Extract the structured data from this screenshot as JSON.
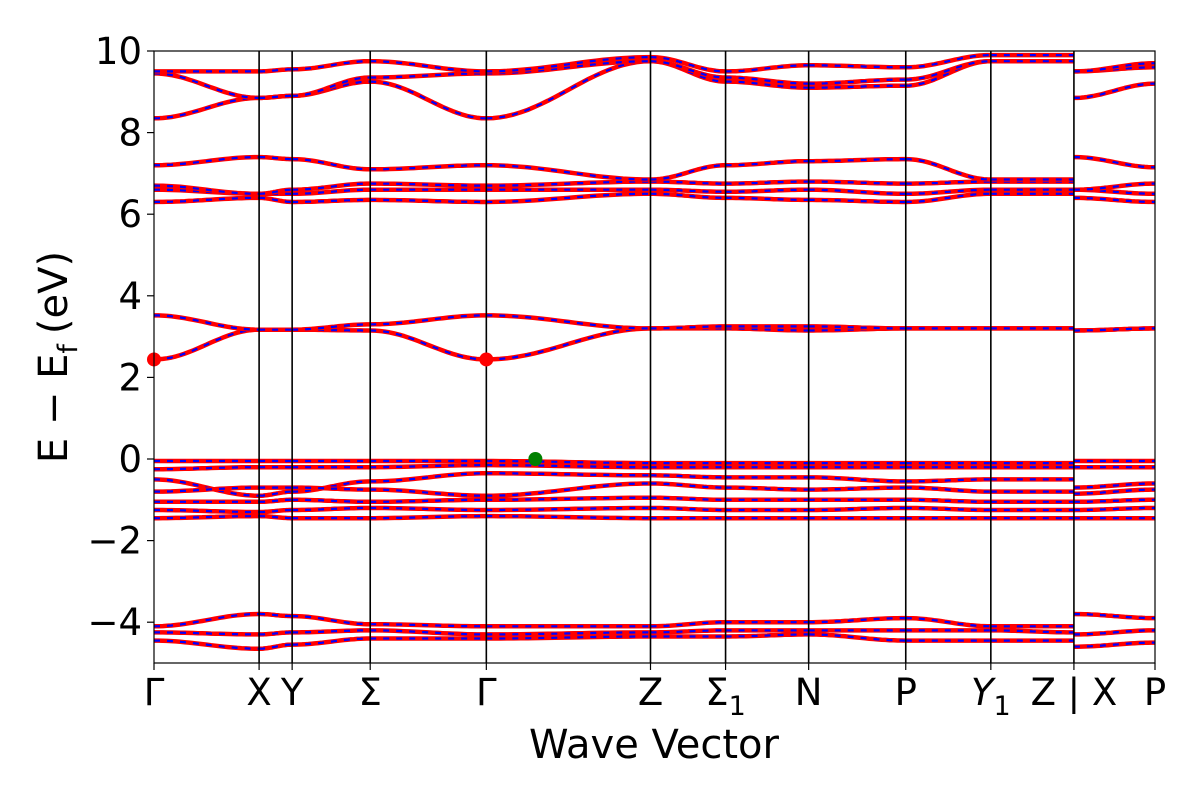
{
  "chart_data": {
    "type": "line",
    "title": "",
    "xlabel": "Wave Vector",
    "ylabel": "E − E_f (eV)",
    "ylabel_parts": {
      "main": "E − E",
      "sub": "f",
      "unit": "(eV)"
    },
    "ylim": [
      -5,
      10
    ],
    "yticks": [
      -4,
      -2,
      0,
      2,
      4,
      6,
      8,
      10
    ],
    "ytick_labels": [
      "−4",
      "−2",
      "0",
      "2",
      "4",
      "6",
      "8",
      "10"
    ],
    "xlim": [
      0,
      1
    ],
    "kpoints": [
      {
        "x": 0.0,
        "label": "Γ"
      },
      {
        "x": 0.105,
        "label": "X"
      },
      {
        "x": 0.138,
        "label": "Y"
      },
      {
        "x": 0.216,
        "label": "Σ"
      },
      {
        "x": 0.332,
        "label": "Γ"
      },
      {
        "x": 0.496,
        "label": "Z"
      },
      {
        "x": 0.571,
        "label": "Σ",
        "sub": "1"
      },
      {
        "x": 0.654,
        "label": "N"
      },
      {
        "x": 0.751,
        "label": "P"
      },
      {
        "x": 0.836,
        "label": "Y",
        "sub": "1",
        "italic": true
      },
      {
        "x": 0.919,
        "label": "Z | X"
      },
      {
        "x": 1.0,
        "label": "P"
      }
    ],
    "line_colors": {
      "band_up": "#ff0000",
      "band_down": "#0000ff"
    },
    "markers": [
      {
        "name": "CBM",
        "x": 0.0,
        "y": 2.44,
        "color": "#ff0000"
      },
      {
        "name": "CBM",
        "x": 0.332,
        "y": 2.44,
        "color": "#ff0000"
      },
      {
        "name": "VBM",
        "x": 0.381,
        "y": 0.0,
        "color": "#008000"
      }
    ],
    "bands": [
      {
        "name": "valence-lower-1",
        "x": [
          0,
          0.105,
          0.138,
          0.216,
          0.332,
          0.496,
          0.571,
          0.654,
          0.751,
          0.836,
          0.919,
          0.919,
          1.0
        ],
        "y": [
          -4.1,
          -3.8,
          -3.85,
          -4.05,
          -4.1,
          -4.1,
          -4.0,
          -4.0,
          -3.9,
          -4.1,
          -4.1,
          -3.8,
          -3.9
        ]
      },
      {
        "name": "valence-lower-2",
        "x": [
          0,
          0.105,
          0.138,
          0.216,
          0.332,
          0.496,
          0.571,
          0.654,
          0.751,
          0.836,
          0.919,
          0.919,
          1.0
        ],
        "y": [
          -4.25,
          -4.3,
          -4.25,
          -4.2,
          -4.3,
          -4.25,
          -4.2,
          -4.2,
          -4.2,
          -4.2,
          -4.25,
          -4.3,
          -4.2
        ]
      },
      {
        "name": "valence-lower-3",
        "x": [
          0,
          0.105,
          0.138,
          0.216,
          0.332,
          0.496,
          0.571,
          0.654,
          0.751,
          0.836,
          0.919,
          0.919,
          1.0
        ],
        "y": [
          -4.45,
          -4.65,
          -4.55,
          -4.4,
          -4.4,
          -4.35,
          -4.35,
          -4.3,
          -4.45,
          -4.45,
          -4.45,
          -4.6,
          -4.5
        ]
      },
      {
        "name": "valence-upper-1",
        "x": [
          0,
          0.105,
          0.138,
          0.216,
          0.332,
          0.496,
          0.571,
          0.654,
          0.751,
          0.836,
          0.919,
          0.919,
          1.0
        ],
        "y": [
          -0.05,
          -0.05,
          -0.05,
          -0.05,
          -0.05,
          -0.1,
          -0.1,
          -0.1,
          -0.1,
          -0.1,
          -0.1,
          -0.05,
          -0.05
        ]
      },
      {
        "name": "valence-upper-2",
        "x": [
          0,
          0.105,
          0.138,
          0.216,
          0.332,
          0.496,
          0.571,
          0.654,
          0.751,
          0.836,
          0.919,
          0.919,
          1.0
        ],
        "y": [
          -0.25,
          -0.2,
          -0.2,
          -0.2,
          -0.15,
          -0.2,
          -0.2,
          -0.2,
          -0.2,
          -0.2,
          -0.2,
          -0.2,
          -0.2
        ]
      },
      {
        "name": "valence-upper-3",
        "x": [
          0,
          0.105,
          0.138,
          0.216,
          0.332,
          0.496,
          0.571,
          0.654,
          0.751,
          0.836,
          0.919,
          0.919,
          1.0
        ],
        "y": [
          -0.5,
          -0.9,
          -0.8,
          -0.55,
          -0.35,
          -0.4,
          -0.45,
          -0.45,
          -0.55,
          -0.5,
          -0.5,
          -0.7,
          -0.6
        ]
      },
      {
        "name": "valence-upper-4",
        "x": [
          0,
          0.105,
          0.138,
          0.216,
          0.332,
          0.496,
          0.571,
          0.654,
          0.751,
          0.836,
          0.919,
          0.919,
          1.0
        ],
        "y": [
          -0.8,
          -0.7,
          -0.7,
          -0.75,
          -0.9,
          -0.6,
          -0.7,
          -0.75,
          -0.7,
          -0.8,
          -0.8,
          -0.85,
          -0.75
        ]
      },
      {
        "name": "valence-upper-5",
        "x": [
          0,
          0.105,
          0.138,
          0.216,
          0.332,
          0.496,
          0.571,
          0.654,
          0.751,
          0.836,
          0.919,
          0.919,
          1.0
        ],
        "y": [
          -1.05,
          -1.05,
          -1.0,
          -1.05,
          -1.0,
          -0.95,
          -1.0,
          -1.0,
          -1.0,
          -1.05,
          -1.05,
          -1.05,
          -1.0
        ]
      },
      {
        "name": "valence-upper-6",
        "x": [
          0,
          0.105,
          0.138,
          0.216,
          0.332,
          0.496,
          0.571,
          0.654,
          0.751,
          0.836,
          0.919,
          0.919,
          1.0
        ],
        "y": [
          -1.25,
          -1.3,
          -1.25,
          -1.2,
          -1.25,
          -1.2,
          -1.25,
          -1.25,
          -1.2,
          -1.25,
          -1.25,
          -1.25,
          -1.2
        ]
      },
      {
        "name": "valence-upper-7",
        "x": [
          0,
          0.105,
          0.138,
          0.216,
          0.332,
          0.496,
          0.571,
          0.654,
          0.751,
          0.836,
          0.919,
          0.919,
          1.0
        ],
        "y": [
          -1.45,
          -1.4,
          -1.45,
          -1.45,
          -1.4,
          -1.45,
          -1.45,
          -1.45,
          -1.45,
          -1.45,
          -1.45,
          -1.45,
          -1.45
        ]
      },
      {
        "name": "conduction-1",
        "x": [
          0,
          0.105,
          0.138,
          0.216,
          0.332,
          0.496,
          0.571,
          0.654,
          0.751,
          0.836,
          0.919,
          0.919,
          1.0
        ],
        "y": [
          2.44,
          3.17,
          3.17,
          3.15,
          2.44,
          3.2,
          3.2,
          3.15,
          3.2,
          3.2,
          3.2,
          3.15,
          3.2
        ]
      },
      {
        "name": "conduction-2",
        "x": [
          0,
          0.105,
          0.138,
          0.216,
          0.332,
          0.496,
          0.571,
          0.654,
          0.751,
          0.836,
          0.919,
          0.919,
          1.0
        ],
        "y": [
          3.52,
          3.17,
          3.17,
          3.3,
          3.52,
          3.2,
          3.25,
          3.25,
          3.2,
          3.2,
          3.2,
          3.15,
          3.2
        ]
      },
      {
        "name": "conduction-3",
        "x": [
          0,
          0.105,
          0.138,
          0.216,
          0.332,
          0.496,
          0.571,
          0.654,
          0.751,
          0.836,
          0.919,
          0.919,
          1.0
        ],
        "y": [
          6.3,
          6.4,
          6.3,
          6.35,
          6.3,
          6.5,
          6.4,
          6.35,
          6.3,
          6.5,
          6.5,
          6.4,
          6.3
        ]
      },
      {
        "name": "conduction-4",
        "x": [
          0,
          0.105,
          0.138,
          0.216,
          0.332,
          0.496,
          0.571,
          0.654,
          0.751,
          0.836,
          0.919,
          0.919,
          1.0
        ],
        "y": [
          6.6,
          6.5,
          6.5,
          6.6,
          6.6,
          6.6,
          6.55,
          6.6,
          6.5,
          6.6,
          6.6,
          6.6,
          6.5
        ]
      },
      {
        "name": "conduction-5",
        "x": [
          0,
          0.105,
          0.138,
          0.216,
          0.332,
          0.496,
          0.571,
          0.654,
          0.751,
          0.836,
          0.919,
          0.919,
          1.0
        ],
        "y": [
          6.7,
          6.5,
          6.6,
          6.75,
          6.7,
          6.8,
          6.75,
          6.8,
          6.75,
          6.8,
          6.8,
          6.6,
          6.75
        ]
      },
      {
        "name": "conduction-6",
        "x": [
          0,
          0.105,
          0.138,
          0.216,
          0.332,
          0.496,
          0.571,
          0.654,
          0.751,
          0.836,
          0.919,
          0.919,
          1.0
        ],
        "y": [
          7.2,
          7.4,
          7.35,
          7.1,
          7.2,
          6.85,
          7.2,
          7.3,
          7.35,
          6.85,
          6.85,
          7.4,
          7.15
        ]
      },
      {
        "name": "conduction-7",
        "x": [
          0,
          0.105,
          0.138,
          0.216,
          0.332,
          0.496,
          0.571,
          0.654,
          0.751,
          0.836,
          0.919,
          0.919,
          1.0
        ],
        "y": [
          8.35,
          8.85,
          8.9,
          9.25,
          8.35,
          9.75,
          9.25,
          9.1,
          9.15,
          9.75,
          9.75,
          8.85,
          9.2
        ]
      },
      {
        "name": "conduction-8",
        "x": [
          0,
          0.105,
          0.138,
          0.216,
          0.332,
          0.496,
          0.571,
          0.654,
          0.751,
          0.836,
          0.919,
          0.919,
          1.0
        ],
        "y": [
          9.45,
          8.85,
          8.9,
          9.35,
          9.45,
          9.75,
          9.35,
          9.2,
          9.3,
          9.75,
          9.75,
          9.5,
          9.6
        ]
      },
      {
        "name": "conduction-9",
        "x": [
          0,
          0.105,
          0.138,
          0.216,
          0.332,
          0.496,
          0.571,
          0.654,
          0.751,
          0.836,
          0.919,
          0.919,
          1.0
        ],
        "y": [
          9.5,
          9.5,
          9.55,
          9.75,
          9.5,
          9.85,
          9.5,
          9.65,
          9.6,
          9.9,
          9.9,
          9.5,
          9.7
        ]
      }
    ]
  }
}
